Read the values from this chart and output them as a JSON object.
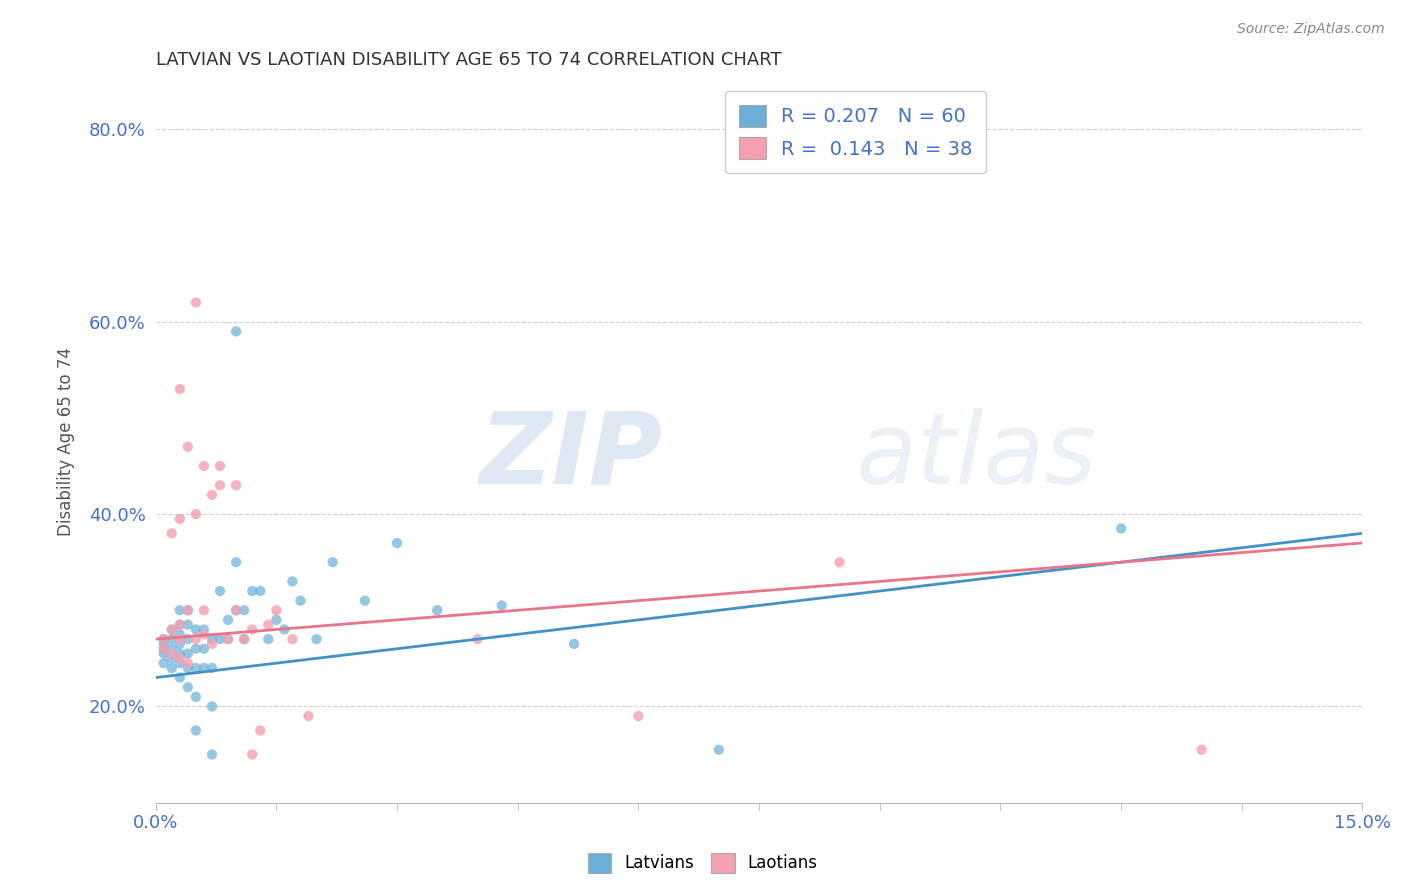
{
  "title": "LATVIAN VS LAOTIAN DISABILITY AGE 65 TO 74 CORRELATION CHART",
  "source": "Source: ZipAtlas.com",
  "xlabel": "",
  "ylabel": "Disability Age 65 to 74",
  "xlim": [
    0.0,
    0.15
  ],
  "ylim": [
    0.1,
    0.85
  ],
  "xticks": [
    0.0,
    0.15
  ],
  "xticklabels": [
    "0.0%",
    "15.0%"
  ],
  "yticks": [
    0.2,
    0.4,
    0.6,
    0.8
  ],
  "yticklabels": [
    "20.0%",
    "40.0%",
    "60.0%",
    "80.0%"
  ],
  "latvian_color": "#6baed6",
  "laotian_color": "#f4a0b0",
  "latvian_line_color": "#4292c6",
  "laotian_line_color": "#e8768a",
  "R_latvian": 0.207,
  "N_latvian": 60,
  "R_laotian": 0.143,
  "N_laotian": 38,
  "latvian_points": [
    [
      0.001,
      0.245
    ],
    [
      0.001,
      0.255
    ],
    [
      0.001,
      0.26
    ],
    [
      0.001,
      0.265
    ],
    [
      0.001,
      0.27
    ],
    [
      0.002,
      0.24
    ],
    [
      0.002,
      0.25
    ],
    [
      0.002,
      0.26
    ],
    [
      0.002,
      0.27
    ],
    [
      0.002,
      0.28
    ],
    [
      0.003,
      0.23
    ],
    [
      0.003,
      0.245
    ],
    [
      0.003,
      0.255
    ],
    [
      0.003,
      0.265
    ],
    [
      0.003,
      0.275
    ],
    [
      0.003,
      0.285
    ],
    [
      0.003,
      0.3
    ],
    [
      0.004,
      0.22
    ],
    [
      0.004,
      0.24
    ],
    [
      0.004,
      0.255
    ],
    [
      0.004,
      0.27
    ],
    [
      0.004,
      0.285
    ],
    [
      0.004,
      0.3
    ],
    [
      0.005,
      0.175
    ],
    [
      0.005,
      0.21
    ],
    [
      0.005,
      0.24
    ],
    [
      0.005,
      0.26
    ],
    [
      0.005,
      0.28
    ],
    [
      0.006,
      0.24
    ],
    [
      0.006,
      0.26
    ],
    [
      0.006,
      0.28
    ],
    [
      0.007,
      0.15
    ],
    [
      0.007,
      0.2
    ],
    [
      0.007,
      0.24
    ],
    [
      0.007,
      0.27
    ],
    [
      0.008,
      0.27
    ],
    [
      0.008,
      0.32
    ],
    [
      0.009,
      0.27
    ],
    [
      0.009,
      0.29
    ],
    [
      0.01,
      0.59
    ],
    [
      0.01,
      0.3
    ],
    [
      0.01,
      0.35
    ],
    [
      0.011,
      0.27
    ],
    [
      0.011,
      0.3
    ],
    [
      0.012,
      0.32
    ],
    [
      0.013,
      0.32
    ],
    [
      0.014,
      0.27
    ],
    [
      0.015,
      0.29
    ],
    [
      0.016,
      0.28
    ],
    [
      0.017,
      0.33
    ],
    [
      0.018,
      0.31
    ],
    [
      0.02,
      0.27
    ],
    [
      0.022,
      0.35
    ],
    [
      0.026,
      0.31
    ],
    [
      0.03,
      0.37
    ],
    [
      0.035,
      0.3
    ],
    [
      0.043,
      0.305
    ],
    [
      0.052,
      0.265
    ],
    [
      0.07,
      0.155
    ],
    [
      0.12,
      0.385
    ]
  ],
  "laotian_points": [
    [
      0.001,
      0.26
    ],
    [
      0.001,
      0.27
    ],
    [
      0.002,
      0.255
    ],
    [
      0.002,
      0.28
    ],
    [
      0.002,
      0.38
    ],
    [
      0.003,
      0.25
    ],
    [
      0.003,
      0.27
    ],
    [
      0.003,
      0.285
    ],
    [
      0.003,
      0.395
    ],
    [
      0.003,
      0.53
    ],
    [
      0.004,
      0.245
    ],
    [
      0.004,
      0.3
    ],
    [
      0.004,
      0.47
    ],
    [
      0.005,
      0.27
    ],
    [
      0.005,
      0.4
    ],
    [
      0.005,
      0.62
    ],
    [
      0.006,
      0.275
    ],
    [
      0.006,
      0.3
    ],
    [
      0.006,
      0.45
    ],
    [
      0.007,
      0.265
    ],
    [
      0.007,
      0.42
    ],
    [
      0.008,
      0.43
    ],
    [
      0.008,
      0.45
    ],
    [
      0.009,
      0.27
    ],
    [
      0.01,
      0.3
    ],
    [
      0.01,
      0.43
    ],
    [
      0.011,
      0.27
    ],
    [
      0.012,
      0.15
    ],
    [
      0.012,
      0.28
    ],
    [
      0.013,
      0.175
    ],
    [
      0.014,
      0.285
    ],
    [
      0.015,
      0.3
    ],
    [
      0.017,
      0.27
    ],
    [
      0.019,
      0.19
    ],
    [
      0.04,
      0.27
    ],
    [
      0.06,
      0.19
    ],
    [
      0.085,
      0.35
    ],
    [
      0.13,
      0.155
    ]
  ],
  "watermark_zip": "ZIP",
  "watermark_atlas": "atlas",
  "background_color": "#ffffff",
  "grid_color": "#d0d0d0",
  "title_color": "#333333",
  "axis_label_color": "#555555",
  "tick_color": "#4472c4",
  "legend_R_color": "#4472c4"
}
